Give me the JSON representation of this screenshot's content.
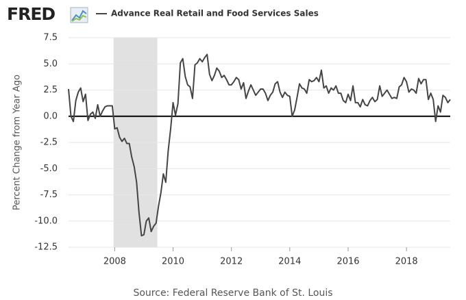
{
  "logo": "FRED",
  "chart_data": {
    "type": "line",
    "y_label": "Percent Change from Year Ago",
    "source": "Source: Federal Reserve Bank of St. Louis",
    "xlim": [
      2006.417,
      2019.5
    ],
    "xticks": [
      2008,
      2010,
      2012,
      2014,
      2016,
      2018
    ],
    "ylim": [
      -12.5,
      7.5
    ],
    "yticks": [
      7.5,
      {
        "value": 5,
        "label": "5.0"
      },
      2.5,
      {
        "value": 0,
        "label": "0.0"
      },
      -2.5,
      {
        "value": -5,
        "label": "-5.0"
      },
      -7.5,
      {
        "value": -10,
        "label": "-10.0"
      },
      -12.5
    ],
    "grid": true,
    "hline": 0,
    "recession": [
      2007.96,
      2009.46
    ],
    "x": [
      2006.417,
      2006.5,
      2006.583,
      2006.667,
      2006.75,
      2006.833,
      2006.917,
      2007,
      2007.083,
      2007.167,
      2007.25,
      2007.333,
      2007.417,
      2007.5,
      2007.583,
      2007.667,
      2007.75,
      2007.833,
      2007.917,
      2008,
      2008.083,
      2008.167,
      2008.25,
      2008.333,
      2008.417,
      2008.5,
      2008.583,
      2008.667,
      2008.75,
      2008.833,
      2008.917,
      2009,
      2009.083,
      2009.167,
      2009.25,
      2009.333,
      2009.417,
      2009.5,
      2009.583,
      2009.667,
      2009.75,
      2009.833,
      2009.917,
      2010,
      2010.083,
      2010.167,
      2010.25,
      2010.333,
      2010.417,
      2010.5,
      2010.583,
      2010.667,
      2010.75,
      2010.833,
      2010.917,
      2011,
      2011.083,
      2011.167,
      2011.25,
      2011.333,
      2011.417,
      2011.5,
      2011.583,
      2011.667,
      2011.75,
      2011.833,
      2011.917,
      2012,
      2012.083,
      2012.167,
      2012.25,
      2012.333,
      2012.417,
      2012.5,
      2012.583,
      2012.667,
      2012.75,
      2012.833,
      2012.917,
      2013,
      2013.083,
      2013.167,
      2013.25,
      2013.333,
      2013.417,
      2013.5,
      2013.583,
      2013.667,
      2013.75,
      2013.833,
      2013.917,
      2014,
      2014.083,
      2014.167,
      2014.25,
      2014.333,
      2014.417,
      2014.5,
      2014.583,
      2014.667,
      2014.75,
      2014.833,
      2014.917,
      2015,
      2015.083,
      2015.167,
      2015.25,
      2015.333,
      2015.417,
      2015.5,
      2015.583,
      2015.667,
      2015.75,
      2015.833,
      2015.917,
      2016,
      2016.083,
      2016.167,
      2016.25,
      2016.333,
      2016.417,
      2016.5,
      2016.583,
      2016.667,
      2016.75,
      2016.833,
      2016.917,
      2017,
      2017.083,
      2017.167,
      2017.25,
      2017.333,
      2017.417,
      2017.5,
      2017.583,
      2017.667,
      2017.75,
      2017.833,
      2017.917,
      2018,
      2018.083,
      2018.167,
      2018.25,
      2018.333,
      2018.417,
      2018.5,
      2018.583,
      2018.667,
      2018.75,
      2018.833,
      2018.917,
      2019,
      2019.083,
      2019.167,
      2019.25,
      2019.333,
      2019.417,
      2019.5
    ],
    "series": [
      {
        "name": "Advance Real Retail and Food Services Sales",
        "color": "#444444",
        "values": [
          2.6,
          0.0,
          -0.5,
          1.5,
          2.3,
          2.7,
          1.4,
          2.1,
          -0.4,
          0.2,
          0.4,
          -0.2,
          1.1,
          0.0,
          0.5,
          0.9,
          1.0,
          1.0,
          1.0,
          -1.2,
          -1.1,
          -2.0,
          -2.4,
          -2.1,
          -2.6,
          -2.6,
          -3.9,
          -4.8,
          -6.3,
          -9.2,
          -11.4,
          -11.3,
          -10.0,
          -9.7,
          -11.0,
          -10.5,
          -10.2,
          -8.6,
          -7.3,
          -5.5,
          -6.3,
          -3.3,
          -1.2,
          1.3,
          0.1,
          1.2,
          5.1,
          5.5,
          3.8,
          3.0,
          2.8,
          1.7,
          4.9,
          5.1,
          5.5,
          5.2,
          5.6,
          5.9,
          4.0,
          3.4,
          3.9,
          4.6,
          4.3,
          3.7,
          3.9,
          3.5,
          3.0,
          3.0,
          3.3,
          3.7,
          3.5,
          2.6,
          3.2,
          1.7,
          2.4,
          3.0,
          2.5,
          2.0,
          2.3,
          2.6,
          2.6,
          2.2,
          1.5,
          2.0,
          2.3,
          3.1,
          3.3,
          2.3,
          1.8,
          2.3,
          2.0,
          1.9,
          0.0,
          0.6,
          1.8,
          3.1,
          2.7,
          2.6,
          2.2,
          3.5,
          3.3,
          3.4,
          3.7,
          3.3,
          4.4,
          2.7,
          2.9,
          2.2,
          2.7,
          2.5,
          2.9,
          2.2,
          2.2,
          1.5,
          1.3,
          2.1,
          1.5,
          2.9,
          1.3,
          1.3,
          0.9,
          1.6,
          1.1,
          1.0,
          1.5,
          1.8,
          1.4,
          1.6,
          2.9,
          1.9,
          2.2,
          2.5,
          2.1,
          1.7,
          1.8,
          1.7,
          2.8,
          3.0,
          3.7,
          3.3,
          2.3,
          2.6,
          2.5,
          2.2,
          3.6,
          3.1,
          3.5,
          3.5,
          1.6,
          2.2,
          1.6,
          -0.5,
          1.0,
          0.4,
          2.0,
          1.8,
          1.3,
          1.6
        ]
      }
    ]
  }
}
